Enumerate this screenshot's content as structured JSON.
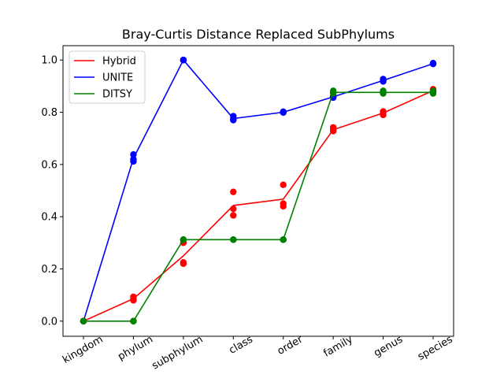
{
  "chart_data": {
    "type": "line",
    "title": "Bray-Curtis Distance Replaced SubPhylums",
    "xlabel": "",
    "ylabel": "",
    "categories": [
      "kingdom",
      "phylum",
      "subphylum",
      "class",
      "order",
      "family",
      "genus",
      "species"
    ],
    "ylim": [
      -0.058,
      1.055
    ],
    "yticks": [
      0.0,
      0.2,
      0.4,
      0.6,
      0.8,
      1.0
    ],
    "ytick_labels": [
      "0.0",
      "0.2",
      "0.4",
      "0.6",
      "0.8",
      "1.0"
    ],
    "grid": false,
    "legend_position": "top-left",
    "series": [
      {
        "name": "Hybrid",
        "color": "#ff0000",
        "line": [
          0.0,
          0.086,
          0.25,
          0.443,
          0.467,
          0.733,
          0.797,
          0.883
        ],
        "points": [
          [
            0,
            0.0
          ],
          [
            0,
            0.0
          ],
          [
            0,
            0.0
          ],
          [
            1,
            0.093
          ],
          [
            1,
            0.08
          ],
          [
            1,
            0.085
          ],
          [
            2,
            0.3
          ],
          [
            2,
            0.225
          ],
          [
            2,
            0.22
          ],
          [
            3,
            0.495
          ],
          [
            3,
            0.43
          ],
          [
            3,
            0.405
          ],
          [
            4,
            0.522
          ],
          [
            4,
            0.45
          ],
          [
            4,
            0.44
          ],
          [
            5,
            0.742
          ],
          [
            5,
            0.728
          ],
          [
            5,
            0.733
          ],
          [
            6,
            0.803
          ],
          [
            6,
            0.79
          ],
          [
            6,
            0.797
          ],
          [
            7,
            0.888
          ],
          [
            7,
            0.878
          ],
          [
            7,
            0.883
          ]
        ]
      },
      {
        "name": "UNITE",
        "color": "#0000ff",
        "line": [
          0.0,
          0.623,
          1.0,
          0.776,
          0.8,
          0.859,
          0.922,
          0.986
        ],
        "points": [
          [
            0,
            0.0
          ],
          [
            0,
            0.0
          ],
          [
            0,
            0.0
          ],
          [
            1,
            0.638
          ],
          [
            1,
            0.612
          ],
          [
            1,
            0.62
          ],
          [
            2,
            1.0
          ],
          [
            2,
            1.0
          ],
          [
            2,
            1.0
          ],
          [
            3,
            0.785
          ],
          [
            3,
            0.77
          ],
          [
            3,
            0.775
          ],
          [
            4,
            0.802
          ],
          [
            4,
            0.8
          ],
          [
            4,
            0.799
          ],
          [
            5,
            0.856
          ],
          [
            5,
            0.861
          ],
          [
            5,
            0.859
          ],
          [
            6,
            0.927
          ],
          [
            6,
            0.918
          ],
          [
            6,
            0.922
          ],
          [
            7,
            0.988
          ],
          [
            7,
            0.985
          ],
          [
            7,
            0.986
          ]
        ]
      },
      {
        "name": "DITSY",
        "color": "#008000",
        "line": [
          0.0,
          0.0,
          0.312,
          0.312,
          0.312,
          0.876,
          0.876,
          0.876
        ],
        "points": [
          [
            0,
            0.0
          ],
          [
            0,
            0.0
          ],
          [
            0,
            0.0
          ],
          [
            1,
            0.0
          ],
          [
            1,
            0.0
          ],
          [
            1,
            0.0
          ],
          [
            2,
            0.312
          ],
          [
            2,
            0.312
          ],
          [
            2,
            0.312
          ],
          [
            3,
            0.312
          ],
          [
            3,
            0.312
          ],
          [
            3,
            0.312
          ],
          [
            4,
            0.312
          ],
          [
            4,
            0.312
          ],
          [
            4,
            0.312
          ],
          [
            5,
            0.882
          ],
          [
            5,
            0.876
          ],
          [
            5,
            0.872
          ],
          [
            6,
            0.882
          ],
          [
            6,
            0.876
          ],
          [
            6,
            0.872
          ],
          [
            7,
            0.882
          ],
          [
            7,
            0.876
          ],
          [
            7,
            0.872
          ]
        ]
      }
    ]
  }
}
